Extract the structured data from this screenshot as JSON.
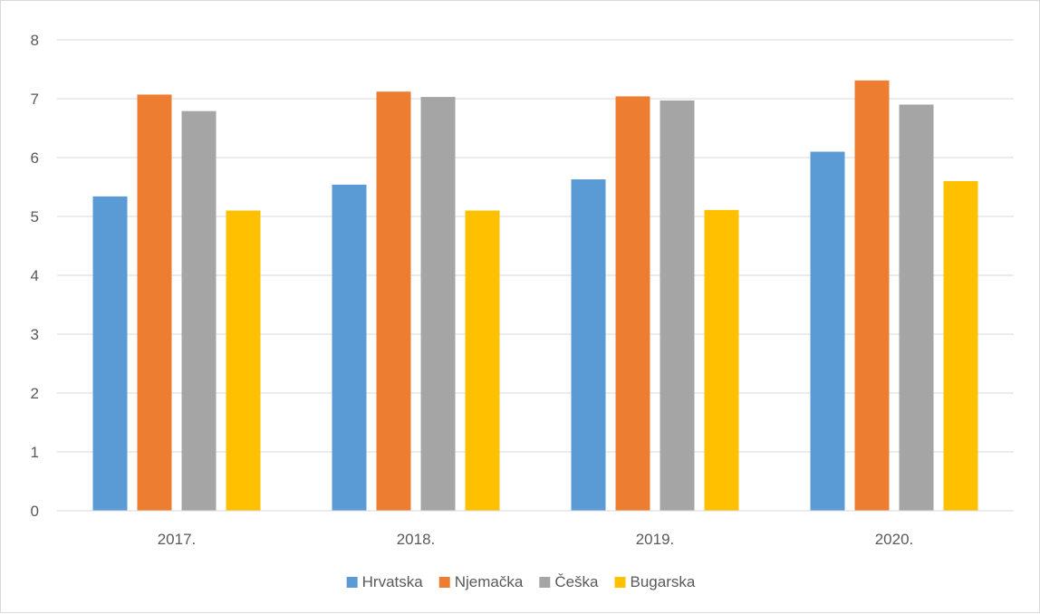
{
  "chart_data": {
    "type": "bar",
    "title": "",
    "xlabel": "",
    "ylabel": "",
    "categories": [
      "2017.",
      "2018.",
      "2019.",
      "2020."
    ],
    "ylim": [
      0,
      8
    ],
    "yticks": [
      0,
      1,
      2,
      3,
      4,
      5,
      6,
      7,
      8
    ],
    "grid": true,
    "legend_position": "bottom",
    "series": [
      {
        "name": "Hrvatska",
        "color": "#5b9bd5",
        "values": [
          5.34,
          5.54,
          5.63,
          6.1
        ]
      },
      {
        "name": "Njemačka",
        "color": "#ed7d31",
        "values": [
          7.07,
          7.12,
          7.04,
          7.31
        ]
      },
      {
        "name": "Češka",
        "color": "#a5a5a5",
        "values": [
          6.79,
          7.03,
          6.97,
          6.9
        ]
      },
      {
        "name": "Bugarska",
        "color": "#ffc000",
        "values": [
          5.1,
          5.1,
          5.11,
          5.6
        ]
      }
    ]
  }
}
